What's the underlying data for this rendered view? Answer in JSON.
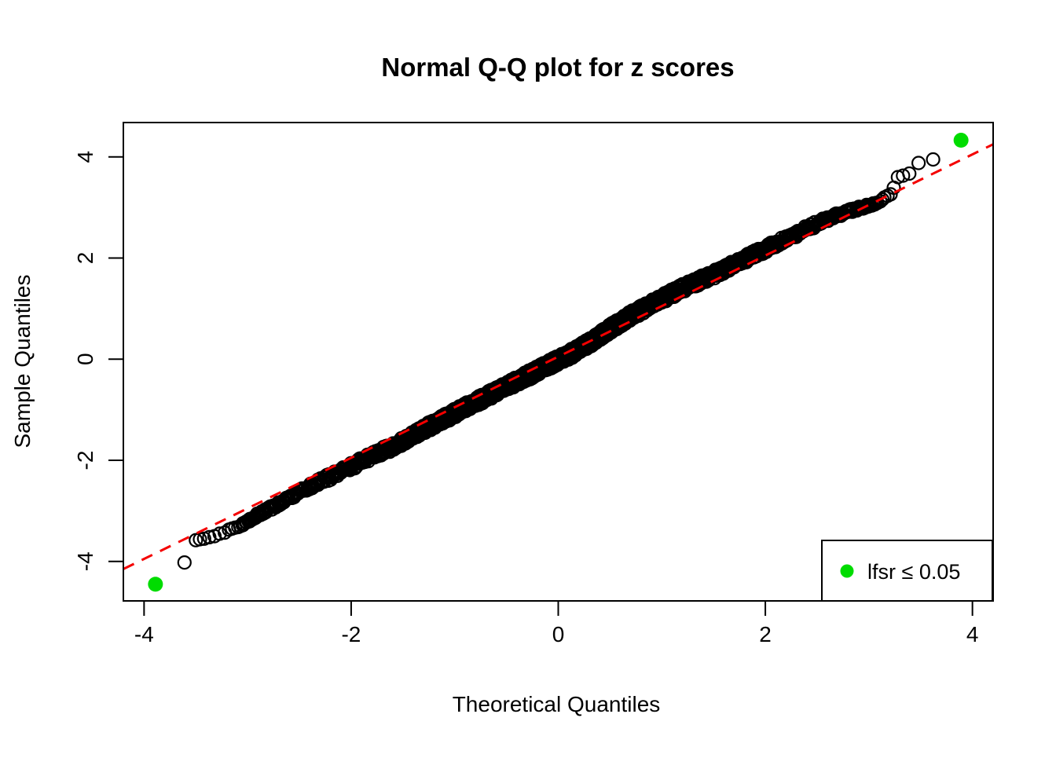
{
  "title": "Normal Q-Q plot for z scores",
  "x_axis": {
    "label": "Theoretical Quantiles",
    "tick_labels": [
      "-4",
      "-2",
      "0",
      "2",
      "4"
    ],
    "tick_values": [
      -4,
      -2,
      0,
      2,
      4
    ]
  },
  "y_axis": {
    "label": "Sample Quantiles",
    "tick_labels": [
      "-4",
      "-2",
      "0",
      "2",
      "4"
    ],
    "tick_values": [
      -4,
      -2,
      0,
      2,
      4
    ]
  },
  "legend": {
    "label": "lfsr  ≤ 0.05",
    "marker_color": "#00DC00",
    "position": "bottom-right"
  },
  "colors": {
    "points": "#000000",
    "reference_line": "#F40000",
    "significant": "#00DC00",
    "background": "#ffffff",
    "frame": "#000000"
  },
  "chart_data": {
    "type": "scatter",
    "title": "Normal Q-Q plot for z scores",
    "xlabel": "Theoretical Quantiles",
    "ylabel": "Sample Quantiles",
    "x_range": [
      -4.2,
      4.2
    ],
    "y_range": [
      -4.78,
      4.68
    ],
    "x_ticks": [
      -4,
      -2,
      0,
      2,
      4
    ],
    "y_ticks": [
      -4,
      -2,
      0,
      2,
      4
    ],
    "grid": false,
    "marker": "open-circle",
    "reference_line": {
      "type": "qqline",
      "slope": 1.0,
      "intercept": 0.05,
      "color": "#F40000",
      "style": "dashed"
    },
    "band_x_limits": [
      -3.05,
      3.09
    ],
    "quantile_curve": [
      [
        -3.05,
        -3.26
      ],
      [
        -2.9,
        -3.08
      ],
      [
        -2.7,
        -2.86
      ],
      [
        -2.5,
        -2.63
      ],
      [
        -2.3,
        -2.42
      ],
      [
        -2.1,
        -2.22
      ],
      [
        -1.9,
        -2.02
      ],
      [
        -1.7,
        -1.82
      ],
      [
        -1.5,
        -1.62
      ],
      [
        -1.3,
        -1.39
      ],
      [
        -1.1,
        -1.17
      ],
      [
        -0.9,
        -0.96
      ],
      [
        -0.7,
        -0.75
      ],
      [
        -0.5,
        -0.54
      ],
      [
        -0.3,
        -0.33
      ],
      [
        -0.1,
        -0.12
      ],
      [
        0.1,
        0.08
      ],
      [
        0.3,
        0.32
      ],
      [
        0.5,
        0.6
      ],
      [
        0.7,
        0.86
      ],
      [
        0.9,
        1.08
      ],
      [
        1.1,
        1.3
      ],
      [
        1.3,
        1.5
      ],
      [
        1.5,
        1.67
      ],
      [
        1.7,
        1.87
      ],
      [
        1.9,
        2.08
      ],
      [
        2.1,
        2.28
      ],
      [
        2.3,
        2.48
      ],
      [
        2.5,
        2.68
      ],
      [
        2.7,
        2.85
      ],
      [
        2.9,
        2.98
      ],
      [
        3.0,
        3.04
      ],
      [
        3.09,
        3.1
      ]
    ],
    "lower_tail_points": [
      [
        -3.61,
        -4.02
      ],
      [
        -3.5,
        -3.58
      ],
      [
        -3.46,
        -3.56
      ],
      [
        -3.42,
        -3.55
      ],
      [
        -3.37,
        -3.52
      ],
      [
        -3.32,
        -3.5
      ],
      [
        -3.27,
        -3.45
      ],
      [
        -3.22,
        -3.43
      ],
      [
        -3.18,
        -3.37
      ],
      [
        -3.15,
        -3.35
      ],
      [
        -3.12,
        -3.33
      ],
      [
        -3.09,
        -3.32
      ],
      [
        -3.07,
        -3.3
      ],
      [
        -3.05,
        -3.27
      ]
    ],
    "upper_tail_points": [
      [
        3.11,
        3.12
      ],
      [
        3.13,
        3.16
      ],
      [
        3.15,
        3.2
      ],
      [
        3.18,
        3.23
      ],
      [
        3.21,
        3.26
      ],
      [
        3.24,
        3.39
      ],
      [
        3.28,
        3.6
      ],
      [
        3.33,
        3.63
      ],
      [
        3.39,
        3.67
      ],
      [
        3.48,
        3.88
      ],
      [
        3.62,
        3.95
      ]
    ],
    "significant_points": {
      "label": "lfsr ≤ 0.05",
      "color": "#00DC00",
      "points": [
        [
          -3.89,
          -4.45
        ],
        [
          3.89,
          4.33
        ]
      ]
    }
  }
}
